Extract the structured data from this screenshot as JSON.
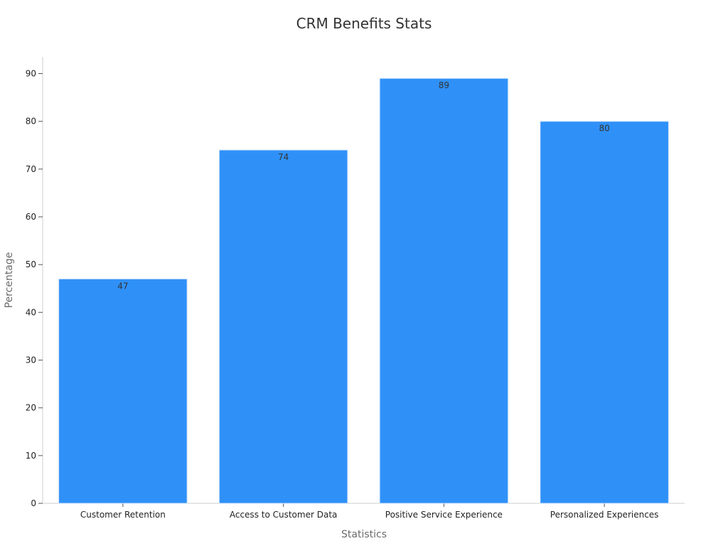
{
  "chart_data": {
    "type": "bar",
    "title": "CRM Benefits Stats",
    "xlabel": "Statistics",
    "ylabel": "Percentage",
    "categories": [
      "Customer Retention",
      "Access to Customer Data",
      "Positive Service Experience",
      "Personalized Experiences"
    ],
    "values": [
      47,
      74,
      89,
      80
    ],
    "data_labels": [
      "47",
      "74",
      "89",
      "80"
    ],
    "ylim": [
      0,
      93.5
    ],
    "yticks": [
      0,
      10,
      20,
      30,
      40,
      50,
      60,
      70,
      80,
      90
    ],
    "ytick_labels": [
      "0",
      "10",
      "20",
      "30",
      "40",
      "50",
      "60",
      "70",
      "80",
      "90"
    ],
    "grid": false,
    "legend": "none",
    "colors": {
      "bar": "#2f91f8",
      "bar_edge": "#d6e6fb",
      "axis": "#cccccc"
    }
  }
}
